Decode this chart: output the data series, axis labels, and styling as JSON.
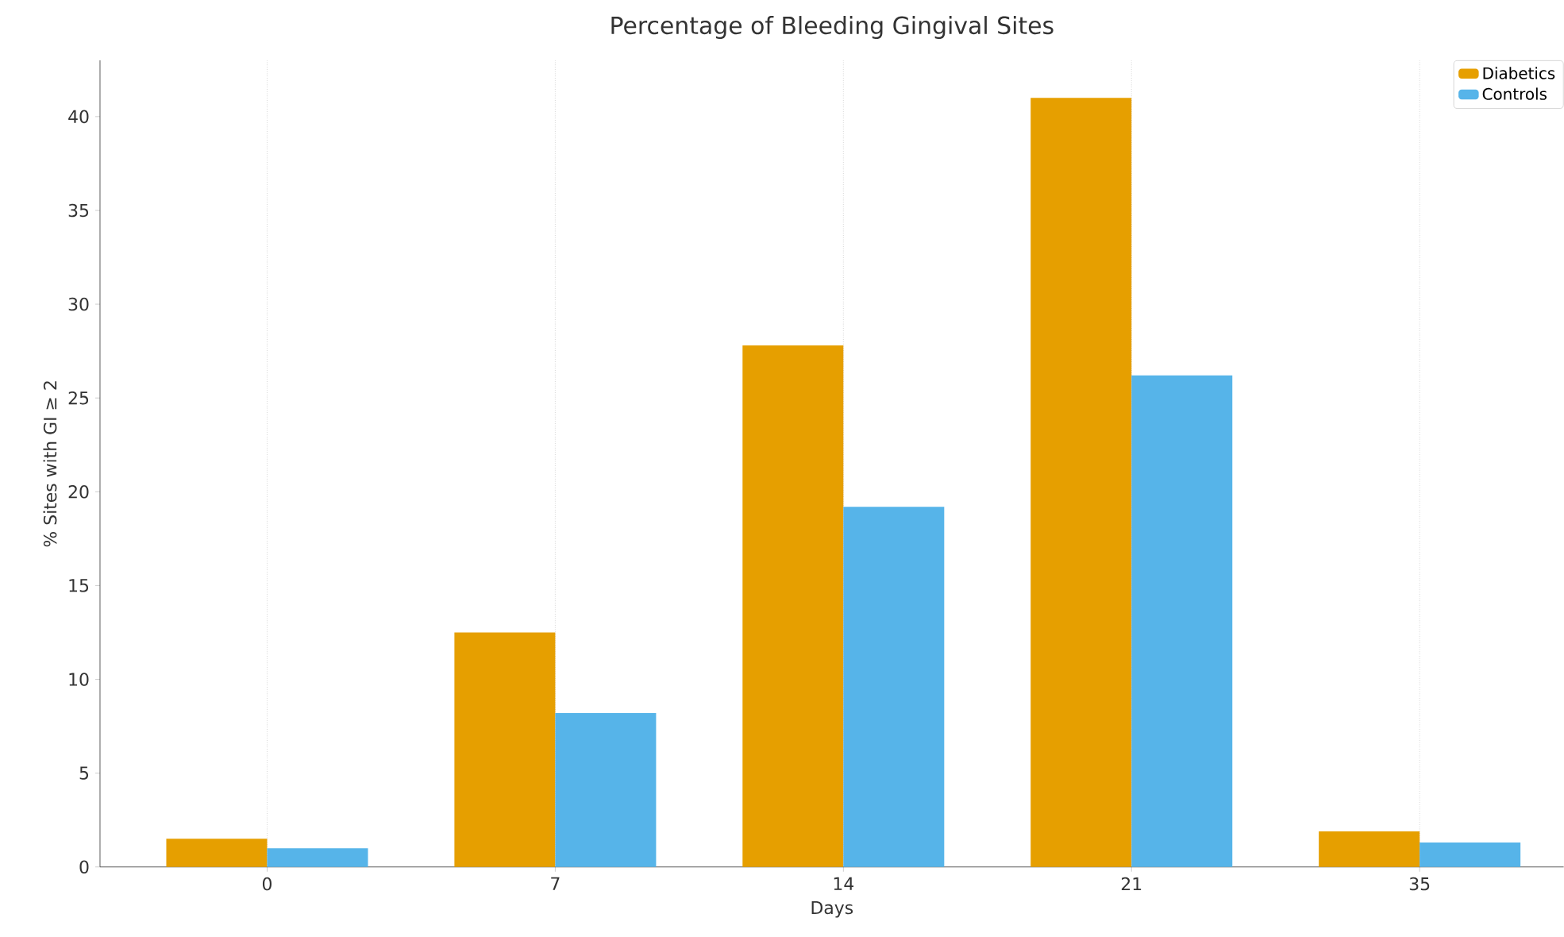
{
  "chart_data": {
    "type": "bar",
    "title": "Percentage of Bleeding Gingival Sites",
    "xlabel": "Days",
    "ylabel": "% Sites with GI ≥ 2",
    "categories": [
      "0",
      "7",
      "14",
      "21",
      "35"
    ],
    "series": [
      {
        "name": "Diabetics",
        "color": "#e69f00",
        "values": [
          1.5,
          12.5,
          27.8,
          41.0,
          1.9
        ]
      },
      {
        "name": "Controls",
        "color": "#56b4e9",
        "values": [
          1.0,
          8.2,
          19.2,
          26.2,
          1.3
        ]
      }
    ],
    "ylim": [
      0,
      43
    ],
    "yticks": [
      0,
      5,
      10,
      15,
      20,
      25,
      30,
      35,
      40
    ],
    "grid": "x",
    "legend": "top right"
  }
}
